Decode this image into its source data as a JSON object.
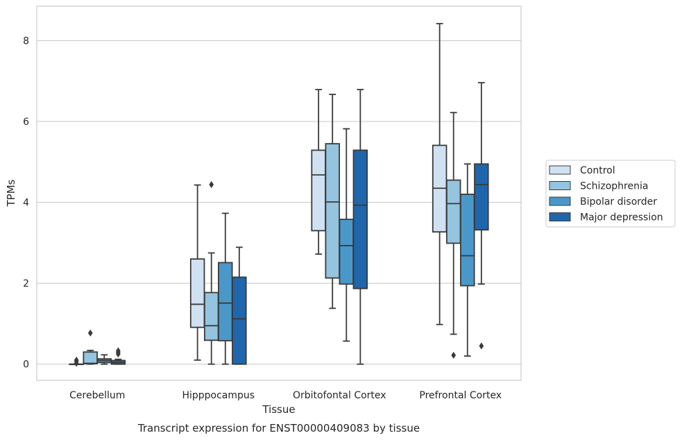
{
  "chart_data": {
    "type": "box",
    "caption": "Transcript expression for ENST00000409083 by tissue",
    "xlabel": "Tissue",
    "ylabel": "TPMs",
    "ylim": [
      -0.4,
      8.85
    ],
    "yticks": [
      0,
      2,
      4,
      6,
      8
    ],
    "grid": "horizontal",
    "legend_position": "right",
    "categories": [
      "Cerebellum",
      "Hipppocampus",
      "Orbitofontal Cortex",
      "Prefrontal Cortex"
    ],
    "series": [
      {
        "name": "Control",
        "color": "#d0e1f2",
        "boxes": [
          {
            "whislo": 0.0,
            "q1": 0.0,
            "med": 0.0,
            "q3": 0.0,
            "whishi": 0.0,
            "fliers": [
              0.02,
              0.07,
              0.1
            ]
          },
          {
            "whislo": 0.1,
            "q1": 0.91,
            "med": 1.48,
            "q3": 2.6,
            "whishi": 4.43,
            "fliers": []
          },
          {
            "whislo": 2.72,
            "q1": 3.3,
            "med": 4.68,
            "q3": 5.29,
            "whishi": 6.79,
            "fliers": []
          },
          {
            "whislo": 0.98,
            "q1": 3.27,
            "med": 4.35,
            "q3": 5.41,
            "whishi": 8.42,
            "fliers": []
          }
        ]
      },
      {
        "name": "Schizophrenia",
        "color": "#94c4df",
        "boxes": [
          {
            "whislo": 0.0,
            "q1": 0.01,
            "med": 0.02,
            "q3": 0.3,
            "whishi": 0.34,
            "fliers": [
              0.77
            ]
          },
          {
            "whislo": 0.0,
            "q1": 0.59,
            "med": 0.95,
            "q3": 1.77,
            "whishi": 2.75,
            "fliers": [
              4.44
            ]
          },
          {
            "whislo": 1.38,
            "q1": 2.13,
            "med": 4.01,
            "q3": 5.45,
            "whishi": 6.67,
            "fliers": []
          },
          {
            "whislo": 0.74,
            "q1": 2.99,
            "med": 3.97,
            "q3": 4.55,
            "whishi": 6.22,
            "fliers": [
              0.22
            ]
          }
        ]
      },
      {
        "name": "Bipolar disorder",
        "color": "#4a98c9",
        "boxes": [
          {
            "whislo": 0.0,
            "q1": 0.04,
            "med": 0.09,
            "q3": 0.13,
            "whishi": 0.23,
            "fliers": []
          },
          {
            "whislo": 0.0,
            "q1": 0.58,
            "med": 1.51,
            "q3": 2.51,
            "whishi": 3.73,
            "fliers": []
          },
          {
            "whislo": 0.57,
            "q1": 1.98,
            "med": 2.93,
            "q3": 3.58,
            "whishi": 5.82,
            "fliers": []
          },
          {
            "whislo": 0.2,
            "q1": 1.94,
            "med": 2.68,
            "q3": 4.2,
            "whishi": 4.95,
            "fliers": []
          }
        ]
      },
      {
        "name": "Major depression",
        "color": "#2066ac",
        "boxes": [
          {
            "whislo": 0.0,
            "q1": 0.0,
            "med": 0.04,
            "q3": 0.09,
            "whishi": 0.12,
            "fliers": [
              0.25,
              0.29,
              0.33
            ]
          },
          {
            "whislo": 0.0,
            "q1": 0.0,
            "med": 1.12,
            "q3": 2.15,
            "whishi": 2.89,
            "fliers": []
          },
          {
            "whislo": 0.0,
            "q1": 1.87,
            "med": 3.93,
            "q3": 5.29,
            "whishi": 6.79,
            "fliers": []
          },
          {
            "whislo": 1.98,
            "q1": 3.32,
            "med": 4.44,
            "q3": 4.95,
            "whishi": 6.96,
            "fliers": [
              0.45
            ]
          }
        ]
      }
    ]
  }
}
